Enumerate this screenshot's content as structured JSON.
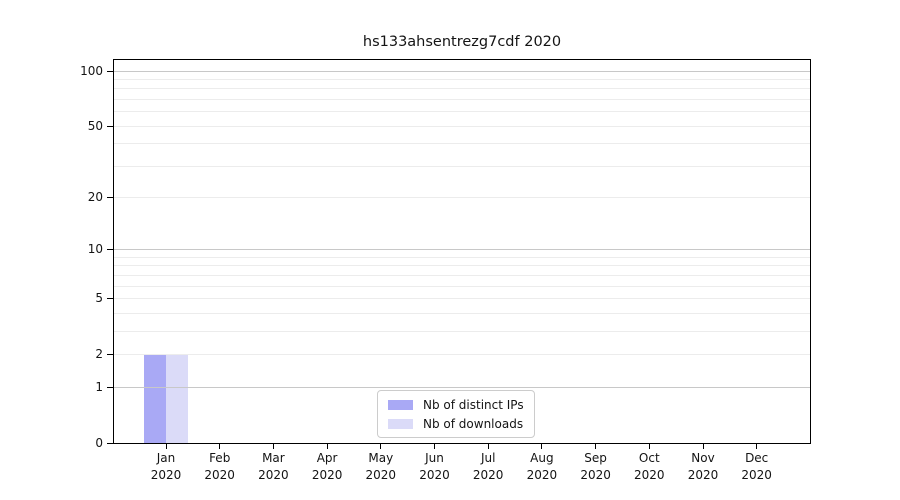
{
  "chart_data": {
    "type": "bar",
    "title": "hs133ahsentrezg7cdf 2020",
    "categories": [
      "Jan",
      "Feb",
      "Mar",
      "Apr",
      "May",
      "Jun",
      "Jul",
      "Aug",
      "Sep",
      "Oct",
      "Nov",
      "Dec"
    ],
    "x_year_label": "2020",
    "series": [
      {
        "name": "Nb of distinct IPs",
        "color": "#a9a9f5",
        "values": [
          2,
          0,
          0,
          0,
          0,
          0,
          0,
          0,
          0,
          0,
          0,
          0
        ]
      },
      {
        "name": "Nb of downloads",
        "color": "#dbdbf8",
        "values": [
          2,
          0,
          0,
          0,
          0,
          0,
          0,
          0,
          0,
          0,
          0,
          0
        ]
      }
    ],
    "yticks": [
      0,
      1,
      2,
      5,
      10,
      20,
      50,
      100
    ],
    "ylim": [
      0,
      100
    ],
    "scale": "log10(1+y)",
    "grid": "horizontal",
    "gridline_major_values": [
      1,
      10,
      100
    ],
    "gridline_minor_values": [
      2,
      3,
      4,
      5,
      6,
      7,
      8,
      9,
      20,
      30,
      40,
      50,
      60,
      70,
      80,
      90
    ],
    "legend_position": "lower center",
    "colors": {
      "background": "#ffffff",
      "axis": "#000000",
      "text": "#141414",
      "grid_major": "#c8c8c8",
      "grid_minor": "#ececec",
      "legend_border": "#cccccc"
    }
  }
}
